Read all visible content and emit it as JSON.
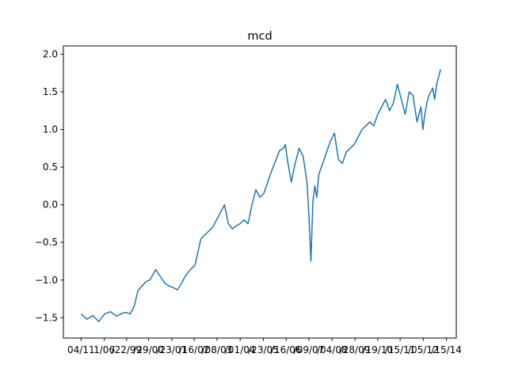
{
  "chart_data": {
    "type": "line",
    "title": "mcd",
    "xlabel": "",
    "ylabel": "",
    "ylim": [
      -1.77,
      2.11
    ],
    "yticks": [
      -1.5,
      -1.0,
      -0.5,
      0.0,
      0.5,
      1.0,
      1.5,
      2.0
    ],
    "ytick_labels": [
      "−1.5",
      "−1.0",
      "−0.5",
      "0.0",
      "0.5",
      "1.0",
      "1.5",
      "2.0"
    ],
    "xlim": [
      0,
      1
    ],
    "xticks": [
      0.045,
      0.104,
      0.161,
      0.217,
      0.276,
      0.333,
      0.391,
      0.45,
      0.509,
      0.567,
      0.625,
      0.684,
      0.742,
      0.8,
      0.857,
      0.916,
      0.975
    ],
    "xtick_labels": [
      "04/11",
      "1/06",
      "/22/99",
      "/29/00",
      "/23/01",
      "/16/02",
      "/08/03",
      "/01/04",
      "/23/05",
      "/16/06",
      "/09/07",
      "/04/08",
      "/28/09",
      "/19/10",
      "/15/11",
      "/05/12",
      "/15/14"
    ],
    "series": [
      {
        "color": "#1f77b4",
        "x": [
          0.045,
          0.06,
          0.075,
          0.09,
          0.105,
          0.12,
          0.135,
          0.15,
          0.16,
          0.17,
          0.18,
          0.19,
          0.2,
          0.21,
          0.22,
          0.235,
          0.25,
          0.26,
          0.27,
          0.28,
          0.29,
          0.3,
          0.31,
          0.32,
          0.335,
          0.35,
          0.36,
          0.37,
          0.38,
          0.39,
          0.4,
          0.41,
          0.42,
          0.43,
          0.44,
          0.45,
          0.46,
          0.47,
          0.48,
          0.49,
          0.5,
          0.51,
          0.52,
          0.53,
          0.54,
          0.55,
          0.56,
          0.565,
          0.57,
          0.58,
          0.59,
          0.6,
          0.61,
          0.62,
          0.625,
          0.63,
          0.635,
          0.64,
          0.645,
          0.65,
          0.66,
          0.67,
          0.68,
          0.69,
          0.7,
          0.71,
          0.72,
          0.73,
          0.74,
          0.75,
          0.76,
          0.77,
          0.78,
          0.79,
          0.8,
          0.81,
          0.82,
          0.83,
          0.84,
          0.85,
          0.86,
          0.87,
          0.88,
          0.89,
          0.9,
          0.91,
          0.915,
          0.92,
          0.925,
          0.93,
          0.935,
          0.94,
          0.945,
          0.95,
          0.955,
          0.96
        ],
        "values": [
          -1.45,
          -1.52,
          -1.47,
          -1.55,
          -1.45,
          -1.42,
          -1.48,
          -1.44,
          -1.43,
          -1.45,
          -1.35,
          -1.14,
          -1.08,
          -1.02,
          -1.0,
          -0.86,
          -0.98,
          -1.05,
          -1.08,
          -1.1,
          -1.13,
          -1.05,
          -0.95,
          -0.88,
          -0.8,
          -0.45,
          -0.4,
          -0.35,
          -0.3,
          -0.2,
          -0.1,
          0.0,
          -0.25,
          -0.32,
          -0.28,
          -0.25,
          -0.2,
          -0.25,
          0.0,
          0.2,
          0.1,
          0.15,
          0.3,
          0.45,
          0.58,
          0.72,
          0.75,
          0.8,
          0.6,
          0.3,
          0.55,
          0.75,
          0.65,
          0.3,
          -0.15,
          -0.75,
          0.05,
          0.25,
          0.1,
          0.4,
          0.55,
          0.7,
          0.85,
          0.95,
          0.6,
          0.55,
          0.7,
          0.75,
          0.8,
          0.9,
          1.0,
          1.05,
          1.1,
          1.05,
          1.2,
          1.3,
          1.4,
          1.25,
          1.35,
          1.6,
          1.4,
          1.2,
          1.5,
          1.45,
          1.1,
          1.3,
          1.0,
          1.2,
          1.35,
          1.45,
          1.5,
          1.55,
          1.4,
          1.6,
          1.7,
          1.8
        ]
      }
    ],
    "grid": false,
    "legend": "none"
  }
}
